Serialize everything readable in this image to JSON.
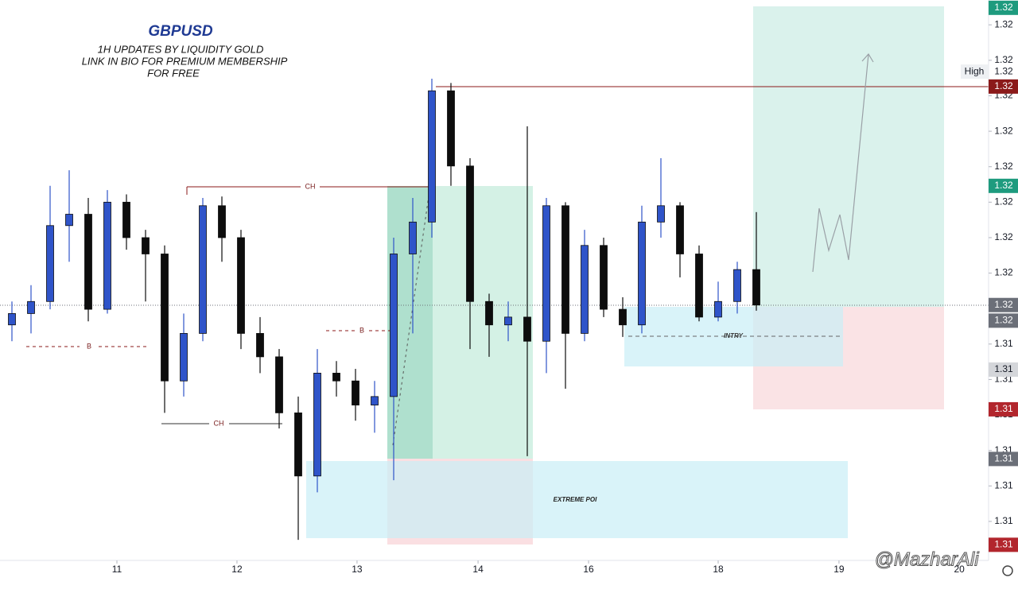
{
  "chart_data": {
    "type": "candlestick",
    "title": "GBPUSD",
    "subtitle": [
      "1H UPDATES BY LIQUIDITY GOLD",
      "LINK IN BIO FOR PREMIUM MEMBERSHIP",
      "FOR FREE"
    ],
    "x": [
      0,
      1,
      2,
      3,
      4,
      5,
      6,
      7,
      8,
      9,
      10,
      11,
      12,
      13,
      14,
      15,
      16,
      17,
      18,
      19,
      20,
      21,
      22,
      23,
      24,
      25,
      26,
      27,
      28,
      29,
      30,
      31,
      32,
      33,
      34,
      35,
      36,
      37,
      38,
      39
    ],
    "open": [
      1.31512,
      1.31528,
      1.31545,
      1.31652,
      1.31668,
      1.31534,
      1.31685,
      1.31635,
      1.31612,
      1.31433,
      1.315,
      1.3168,
      1.31635,
      1.315,
      1.31467,
      1.31388,
      1.31299,
      1.31444,
      1.31433,
      1.31399,
      1.31411,
      1.31612,
      1.31657,
      1.31842,
      1.31736,
      1.31545,
      1.31512,
      1.31523,
      1.31489,
      1.3168,
      1.315,
      1.31624,
      1.31534,
      1.31512,
      1.31657,
      1.3168,
      1.31612,
      1.31523,
      1.31545,
      1.3159
    ],
    "high": [
      1.31545,
      1.31568,
      1.31708,
      1.3173,
      1.31691,
      1.31702,
      1.31696,
      1.31646,
      1.31624,
      1.31528,
      1.31691,
      1.31693,
      1.31646,
      1.31523,
      1.31478,
      1.31411,
      1.31478,
      1.31461,
      1.3145,
      1.31433,
      1.31635,
      1.31691,
      1.31859,
      1.31853,
      1.31747,
      1.31556,
      1.31545,
      1.31792,
      1.31691,
      1.31685,
      1.31646,
      1.31635,
      1.31551,
      1.3168,
      1.31747,
      1.31685,
      1.31624,
      1.31573,
      1.31601,
      1.31671
    ],
    "low": [
      1.31489,
      1.315,
      1.31534,
      1.31601,
      1.31517,
      1.31528,
      1.31618,
      1.31545,
      1.31388,
      1.31411,
      1.31489,
      1.31601,
      1.31478,
      1.31444,
      1.31366,
      1.31209,
      1.31276,
      1.31411,
      1.31377,
      1.3136,
      1.31293,
      1.315,
      1.31635,
      1.31708,
      1.31478,
      1.31467,
      1.31489,
      1.31327,
      1.31444,
      1.31422,
      1.31489,
      1.31523,
      1.31495,
      1.315,
      1.31635,
      1.31579,
      1.31517,
      1.31517,
      1.31528,
      1.31532
    ],
    "close": [
      1.31528,
      1.31545,
      1.31652,
      1.31668,
      1.31534,
      1.31685,
      1.31635,
      1.31612,
      1.31433,
      1.315,
      1.3168,
      1.31635,
      1.315,
      1.31467,
      1.31388,
      1.31299,
      1.31444,
      1.31433,
      1.31399,
      1.31411,
      1.31612,
      1.31657,
      1.31842,
      1.31736,
      1.31545,
      1.31512,
      1.31523,
      1.31489,
      1.3168,
      1.315,
      1.31624,
      1.31534,
      1.31512,
      1.31657,
      1.3168,
      1.31612,
      1.31523,
      1.31545,
      1.3159,
      1.3154
    ],
    "up_color": "#2f54c9",
    "down_color": "#0d0d0d",
    "xlim": [
      -0.625,
      50.625
    ],
    "xticks": [
      {
        "value": 5.5,
        "label": "11"
      },
      {
        "value": 11.79,
        "label": "12"
      },
      {
        "value": 18.08,
        "label": "13"
      },
      {
        "value": 24.42,
        "label": "14"
      },
      {
        "value": 30.21,
        "label": "16"
      },
      {
        "value": 37,
        "label": "18"
      },
      {
        "value": 43.33,
        "label": "19"
      },
      {
        "value": 49.63,
        "label": "20"
      }
    ],
    "ylim": [
      1.3118,
      1.3197
    ],
    "yticks": [
      {
        "value": 1.31935,
        "label": "1.32"
      },
      {
        "value": 1.31885,
        "label": "1.32"
      },
      {
        "value": 1.31835,
        "label": "1.32"
      },
      {
        "value": 1.31785,
        "label": "1.32"
      },
      {
        "value": 1.31735,
        "label": "1.32"
      },
      {
        "value": 1.31685,
        "label": "1.32"
      },
      {
        "value": 1.31635,
        "label": "1.32"
      },
      {
        "value": 1.31585,
        "label": "1.32"
      },
      {
        "value": 1.31485,
        "label": "1.31"
      },
      {
        "value": 1.31435,
        "label": "1.31"
      },
      {
        "value": 1.31385,
        "label": "1.31"
      },
      {
        "value": 1.31335,
        "label": "1.31"
      },
      {
        "value": 1.31285,
        "label": "1.31"
      },
      {
        "value": 1.31235,
        "label": "1.31"
      }
    ],
    "price_tags": [
      {
        "value": 1.31959,
        "label": "1.32",
        "color": "#1e9b7e",
        "text_color": "#ffffff"
      },
      {
        "value": 1.31848,
        "label": "1.32",
        "color": "#8b1a1a",
        "text_color": "#ffffff"
      },
      {
        "value": 1.31708,
        "label": "1.32",
        "color": "#1e9b7e",
        "text_color": "#ffffff"
      },
      {
        "value": 1.3154,
        "label": "1.32",
        "color": "#6b6f78",
        "text_color": "#ffffff"
      },
      {
        "value": 1.31518,
        "label": "1.32",
        "color": "#6b6f78",
        "text_color": "#ffffff"
      },
      {
        "value": 1.31449,
        "label": "1.31",
        "color": "#d4d6da",
        "text_color": "#131722"
      },
      {
        "value": 1.31393,
        "label": "1.31",
        "color": "#b2262d",
        "text_color": "#ffffff"
      },
      {
        "value": 1.31323,
        "label": "1.31",
        "color": "#6b6f78",
        "text_color": "#ffffff"
      },
      {
        "value": 1.31202,
        "label": "1.31",
        "color": "#b2262d",
        "text_color": "#ffffff"
      }
    ],
    "high_marker": {
      "label": "High",
      "value": 1.31869,
      "value_label": "1.32"
    },
    "annotations": [
      "CH",
      "CH",
      "B",
      "B",
      "INTRY",
      "EXTREME POI"
    ],
    "watermark": "@MazharAli"
  }
}
